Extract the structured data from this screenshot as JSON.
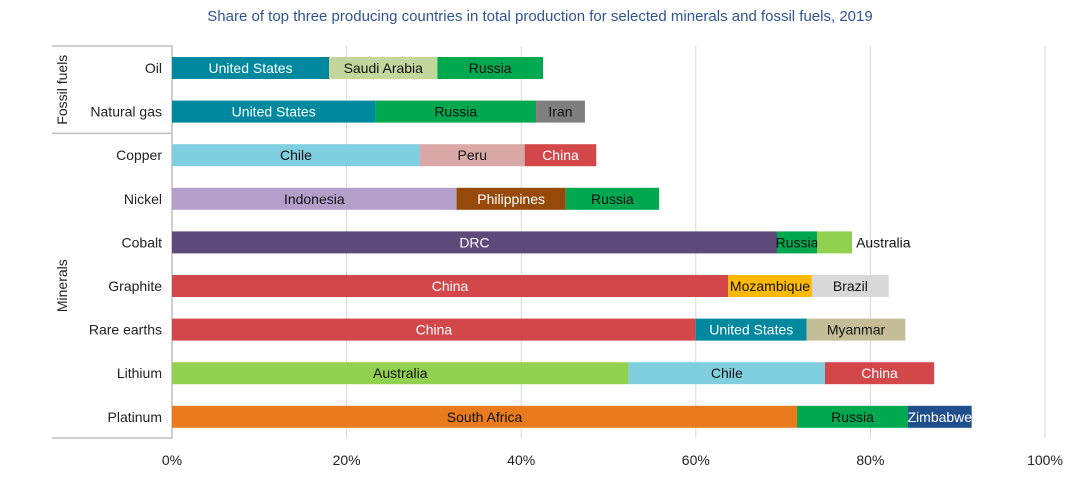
{
  "chart_data": {
    "type": "bar",
    "stacked": true,
    "orientation": "horizontal",
    "title": "Share of top three producing countries in total production for selected minerals and fossil fuels, 2019",
    "xlim": [
      0,
      100
    ],
    "xticks": [
      "0%",
      "20%",
      "40%",
      "60%",
      "80%",
      "100%"
    ],
    "xtick_values": [
      0,
      20,
      40,
      60,
      80,
      100
    ],
    "grid": true,
    "groups": [
      {
        "label": "Fossil fuels",
        "categories": [
          "Oil",
          "Natural gas"
        ]
      },
      {
        "label": "Minerals",
        "categories": [
          "Copper",
          "Nickel",
          "Cobalt",
          "Graphite",
          "Rare earths",
          "Lithium",
          "Platinum"
        ]
      }
    ],
    "rows": [
      {
        "category": "Oil",
        "segments": [
          {
            "country": "United States",
            "value": 18.0
          },
          {
            "country": "Saudi Arabia",
            "value": 12.4
          },
          {
            "country": "Russia",
            "value": 12.1
          }
        ]
      },
      {
        "category": "Natural gas",
        "segments": [
          {
            "country": "United States",
            "value": 23.3
          },
          {
            "country": "Russia",
            "value": 18.4
          },
          {
            "country": "Iran",
            "value": 5.6
          }
        ]
      },
      {
        "category": "Copper",
        "segments": [
          {
            "country": "Chile",
            "value": 28.4
          },
          {
            "country": "Peru",
            "value": 12.0
          },
          {
            "country": "China",
            "value": 8.2
          }
        ]
      },
      {
        "category": "Nickel",
        "segments": [
          {
            "country": "Indonesia",
            "value": 32.6
          },
          {
            "country": "Philippines",
            "value": 12.5
          },
          {
            "country": "Russia",
            "value": 10.7
          }
        ]
      },
      {
        "category": "Cobalt",
        "segments": [
          {
            "country": "DRC",
            "value": 69.3
          },
          {
            "country": "Russia",
            "value": 4.6
          },
          {
            "country": "Australia",
            "value": 4.0
          }
        ]
      },
      {
        "category": "Graphite",
        "segments": [
          {
            "country": "China",
            "value": 63.7
          },
          {
            "country": "Mozambique",
            "value": 9.6
          },
          {
            "country": "Brazil",
            "value": 8.8
          }
        ]
      },
      {
        "category": "Rare earths",
        "segments": [
          {
            "country": "China",
            "value": 60.0
          },
          {
            "country": "United States",
            "value": 12.7
          },
          {
            "country": "Myanmar",
            "value": 11.3
          }
        ]
      },
      {
        "category": "Lithium",
        "segments": [
          {
            "country": "Australia",
            "value": 52.3
          },
          {
            "country": "Chile",
            "value": 22.5
          },
          {
            "country": "China",
            "value": 12.5
          }
        ]
      },
      {
        "category": "Platinum",
        "segments": [
          {
            "country": "South Africa",
            "value": 71.6
          },
          {
            "country": "Russia",
            "value": 12.7
          },
          {
            "country": "Zimbabwe",
            "value": 7.3
          }
        ]
      }
    ],
    "colors": {
      "United States": "#00889e",
      "Saudi Arabia": "#c3d69b",
      "Russia": "#00a84f",
      "Iran": "#7f7f7f",
      "Chile": "#7fcfe0",
      "Peru": "#dba8a8",
      "China": "#d2474a",
      "Indonesia": "#b49fca",
      "Philippines": "#964a0a",
      "DRC": "#5e4a7a",
      "Australia": "#92d050",
      "Mozambique": "#ffb900",
      "Brazil": "#d9d9d9",
      "Myanmar": "#c4bd97",
      "South Africa": "#e97b1c",
      "Zimbabwe": "#1f4e8c"
    },
    "white_text": [
      "United States",
      "Philippines",
      "DRC",
      "Zimbabwe",
      "China"
    ]
  }
}
